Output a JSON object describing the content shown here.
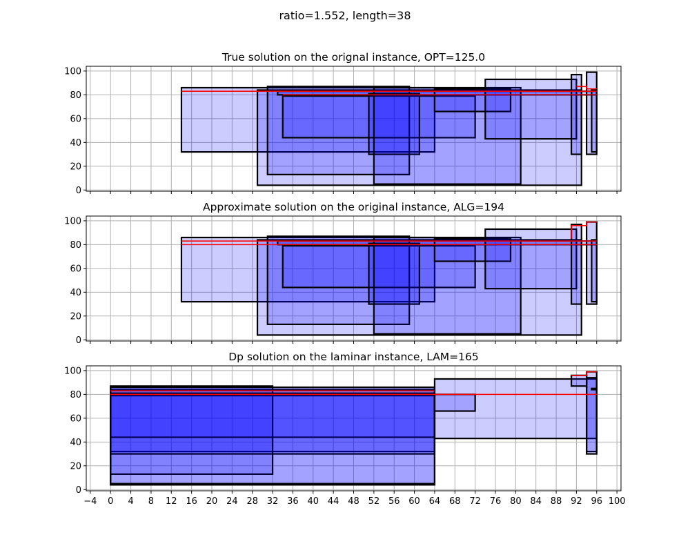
{
  "figure": {
    "suptitle": "ratio=1.552, length=38"
  },
  "chart_data": [
    {
      "type": "rectangles",
      "title": "True solution on the orignal instance, OPT=125.0",
      "xlim": [
        -4.8,
        100.8
      ],
      "ylim": [
        -1,
        104
      ],
      "yticks": [
        0,
        20,
        40,
        60,
        80,
        100
      ],
      "grid": true,
      "show_xtick_labels": false,
      "rects": [
        [
          14,
          32,
          64,
          86
        ],
        [
          29,
          4,
          93,
          84
        ],
        [
          31,
          13,
          59,
          87
        ],
        [
          33,
          80,
          96,
          83
        ],
        [
          34,
          44,
          72,
          79
        ],
        [
          51,
          30,
          61,
          81
        ],
        [
          52,
          5,
          81,
          86
        ],
        [
          64,
          66,
          79,
          85
        ],
        [
          74,
          43,
          92,
          93
        ],
        [
          91,
          30,
          93,
          97
        ],
        [
          94,
          30,
          96,
          99
        ],
        [
          95,
          32,
          96,
          84
        ]
      ],
      "red_lines": [
        {
          "points": [
            [
              14,
              83
            ],
            [
              96,
              83
            ]
          ]
        },
        {
          "points": [
            [
              34,
              80
            ],
            [
              96,
              80
            ]
          ]
        },
        {
          "points": [
            [
              92,
              87
            ],
            [
              94,
              87
            ],
            [
              94,
              85
            ],
            [
              96,
              85
            ]
          ]
        }
      ]
    },
    {
      "type": "rectangles",
      "title": "Approximate solution on the original instance, ALG=194",
      "xlim": [
        -4.8,
        100.8
      ],
      "ylim": [
        -1,
        104
      ],
      "yticks": [
        0,
        20,
        40,
        60,
        80,
        100
      ],
      "grid": true,
      "show_xtick_labels": false,
      "rects": [
        [
          14,
          32,
          64,
          86
        ],
        [
          29,
          4,
          93,
          84
        ],
        [
          31,
          13,
          59,
          87
        ],
        [
          33,
          80,
          96,
          83
        ],
        [
          34,
          44,
          72,
          79
        ],
        [
          51,
          30,
          61,
          81
        ],
        [
          52,
          5,
          81,
          86
        ],
        [
          64,
          66,
          79,
          85
        ],
        [
          74,
          43,
          92,
          93
        ],
        [
          91,
          30,
          93,
          97
        ],
        [
          94,
          30,
          96,
          99
        ],
        [
          95,
          32,
          96,
          84
        ]
      ],
      "red_lines": [
        {
          "points": [
            [
              14,
              83
            ],
            [
              96,
              83
            ]
          ]
        },
        {
          "points": [
            [
              14,
              80
            ],
            [
              96,
              80
            ]
          ]
        },
        {
          "points": [
            [
              91,
              85
            ],
            [
              91,
              96
            ],
            [
              94,
              96
            ],
            [
              94,
              99
            ],
            [
              96,
              99
            ]
          ]
        }
      ]
    },
    {
      "type": "rectangles",
      "title": "Dp solution on the laminar instance, LAM=165",
      "xlim": [
        -4.8,
        100.8
      ],
      "ylim": [
        -1,
        104
      ],
      "yticks": [
        0,
        20,
        40,
        60,
        80,
        100
      ],
      "grid": true,
      "show_xtick_labels": true,
      "xticks": [
        -4,
        0,
        4,
        8,
        12,
        16,
        20,
        24,
        28,
        32,
        36,
        40,
        44,
        48,
        52,
        56,
        60,
        64,
        68,
        72,
        76,
        80,
        84,
        88,
        92,
        96,
        100
      ],
      "rects": [
        [
          0,
          32,
          64,
          86
        ],
        [
          0,
          4,
          64,
          84
        ],
        [
          0,
          13,
          32,
          87
        ],
        [
          0,
          44,
          64,
          79
        ],
        [
          0,
          30,
          64,
          81
        ],
        [
          0,
          5,
          64,
          86
        ],
        [
          64,
          43,
          96,
          93
        ],
        [
          64,
          66,
          72,
          80
        ],
        [
          91,
          87,
          94,
          96
        ],
        [
          94,
          32,
          96,
          99
        ],
        [
          94,
          30,
          96,
          94
        ],
        [
          95,
          84,
          96,
          85
        ]
      ],
      "red_lines": [
        {
          "points": [
            [
              0,
              83
            ],
            [
              64,
              83
            ]
          ]
        },
        {
          "points": [
            [
              0,
              80
            ],
            [
              96,
              80
            ]
          ]
        },
        {
          "points": [
            [
              91,
              96
            ],
            [
              94,
              96
            ],
            [
              94,
              99
            ],
            [
              96,
              99
            ]
          ]
        }
      ]
    }
  ]
}
